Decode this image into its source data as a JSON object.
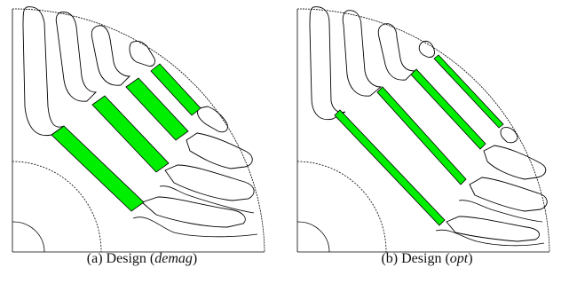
{
  "panels": [
    {
      "caption_prefix": "(a) Design (",
      "caption_italic": "demag",
      "caption_suffix": ")",
      "magnet_color": "#00ee00"
    },
    {
      "caption_prefix": "(b) Design (",
      "caption_italic": "opt",
      "caption_suffix": ")",
      "magnet_color": "#00ee00"
    }
  ],
  "colors": {
    "outline": "#000000",
    "magnet": "#00ee00",
    "background": "#ffffff"
  }
}
